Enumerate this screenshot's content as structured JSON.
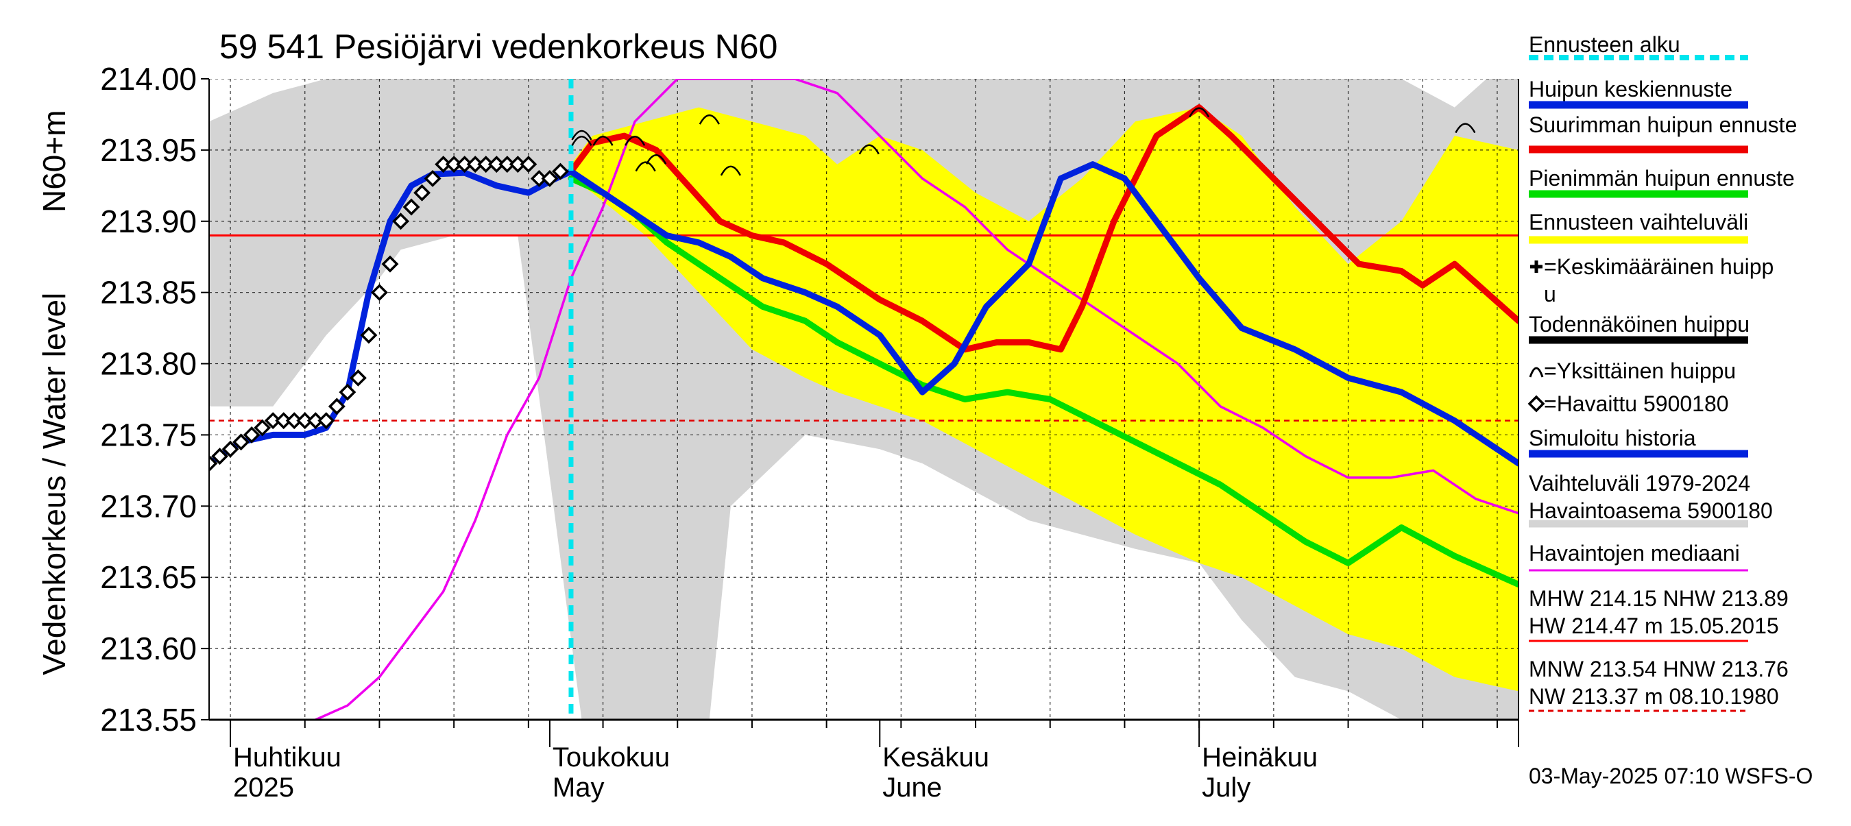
{
  "chart_data": {
    "type": "line",
    "title": "59 541 Pesiöjärvi vedenkorkeus N60",
    "ylabel_top": "N60+m",
    "ylabel": "Vedenkorkeus / Water level",
    "ylim": [
      213.55,
      214.0
    ],
    "yticks": [
      {
        "value": 214.0,
        "label": "214.00"
      },
      {
        "value": 213.95,
        "label": "213.95"
      },
      {
        "value": 213.9,
        "label": "213.90"
      },
      {
        "value": 213.85,
        "label": "213.85"
      },
      {
        "value": 213.8,
        "label": "213.80"
      },
      {
        "value": 213.75,
        "label": "213.75"
      },
      {
        "value": 213.7,
        "label": "213.70"
      },
      {
        "value": 213.65,
        "label": "213.65"
      },
      {
        "value": 213.6,
        "label": "213.60"
      },
      {
        "value": 213.55,
        "label": "213.55"
      }
    ],
    "xlim": [
      "2025-03-30",
      "2025-07-31"
    ],
    "xgrid_days": [
      "2025-04-01",
      "2025-04-08",
      "2025-04-15",
      "2025-04-22",
      "2025-04-29",
      "2025-05-06",
      "2025-05-13",
      "2025-05-20",
      "2025-05-27",
      "2025-06-03",
      "2025-06-10",
      "2025-06-17",
      "2025-06-24",
      "2025-07-01",
      "2025-07-08",
      "2025-07-15",
      "2025-07-22",
      "2025-07-29"
    ],
    "month_labels": [
      {
        "date": "2025-04-01",
        "fi": "Huhtikuu",
        "en": "2025"
      },
      {
        "date": "2025-05-01",
        "fi": "Toukokuu",
        "en": "May"
      },
      {
        "date": "2025-06-01",
        "fi": "Kesäkuu",
        "en": "June"
      },
      {
        "date": "2025-07-01",
        "fi": "Heinäkuu",
        "en": "July"
      }
    ],
    "forecast_start": "2025-05-03",
    "hlines": [
      {
        "name": "NHW 213.89",
        "value": 213.89,
        "color": "#ff0000",
        "style": "solid"
      },
      {
        "name": "HNW 213.76",
        "value": 213.76,
        "color": "#e00000",
        "style": "dashed"
      }
    ],
    "colors": {
      "forecast_start": "#00e5ee",
      "mean_forecast": "#0022dd",
      "max_forecast": "#ee0000",
      "min_forecast": "#00dd00",
      "forecast_range": "#ffff00",
      "history_range": "#d4d4d4",
      "median": "#ee00ee",
      "observed": "#000000"
    },
    "history_range": {
      "x": [
        "2025-03-30",
        "2025-04-05",
        "2025-04-10",
        "2025-04-15",
        "2025-04-17",
        "2025-04-22",
        "2025-04-28",
        "2025-05-04",
        "2025-05-10",
        "2025-05-16",
        "2025-05-18",
        "2025-05-25",
        "2025-06-01",
        "2025-06-05",
        "2025-06-10",
        "2025-06-15",
        "2025-06-20",
        "2025-06-25",
        "2025-07-01",
        "2025-07-05",
        "2025-07-10",
        "2025-07-15",
        "2025-07-20",
        "2025-07-25",
        "2025-07-28",
        "2025-07-31"
      ],
      "upper": [
        213.97,
        213.99,
        214.0,
        214.0,
        214.0,
        214.0,
        214.0,
        214.0,
        214.0,
        214.0,
        214.0,
        214.0,
        214.0,
        214.0,
        214.0,
        214.0,
        214.0,
        214.0,
        214.0,
        214.0,
        214.0,
        214.0,
        214.0,
        213.98,
        214.0,
        214.0
      ],
      "lower": [
        213.77,
        213.77,
        213.82,
        213.86,
        213.88,
        213.89,
        213.89,
        213.55,
        213.55,
        213.55,
        213.7,
        213.75,
        213.74,
        213.73,
        213.71,
        213.69,
        213.68,
        213.67,
        213.66,
        213.62,
        213.58,
        213.57,
        213.55,
        213.55,
        213.55,
        213.55
      ]
    },
    "forecast_range": {
      "x": [
        "2025-05-03",
        "2025-05-05",
        "2025-05-10",
        "2025-05-15",
        "2025-05-20",
        "2025-05-25",
        "2025-05-28",
        "2025-06-01",
        "2025-06-05",
        "2025-06-10",
        "2025-06-15",
        "2025-06-20",
        "2025-06-25",
        "2025-07-01",
        "2025-07-05",
        "2025-07-10",
        "2025-07-15",
        "2025-07-20",
        "2025-07-25",
        "2025-07-31"
      ],
      "upper": [
        213.94,
        213.96,
        213.97,
        213.98,
        213.97,
        213.96,
        213.94,
        213.96,
        213.95,
        213.92,
        213.9,
        213.93,
        213.97,
        213.98,
        213.96,
        213.91,
        213.87,
        213.9,
        213.96,
        213.95
      ],
      "lower": [
        213.93,
        213.92,
        213.89,
        213.85,
        213.81,
        213.79,
        213.78,
        213.77,
        213.76,
        213.74,
        213.72,
        213.7,
        213.68,
        213.66,
        213.65,
        213.63,
        213.61,
        213.6,
        213.58,
        213.57
      ]
    },
    "series": [
      {
        "name": "Huipun keskiennuste",
        "x": [
          "2025-03-30",
          "2025-04-02",
          "2025-04-05",
          "2025-04-08",
          "2025-04-10",
          "2025-04-12",
          "2025-04-14",
          "2025-04-16",
          "2025-04-18",
          "2025-04-20",
          "2025-04-23",
          "2025-04-26",
          "2025-04-29",
          "2025-05-01",
          "2025-05-03",
          "2025-05-06",
          "2025-05-09",
          "2025-05-12",
          "2025-05-15",
          "2025-05-18",
          "2025-05-21",
          "2025-05-25",
          "2025-05-28",
          "2025-06-01",
          "2025-06-05",
          "2025-06-08",
          "2025-06-11",
          "2025-06-15",
          "2025-06-18",
          "2025-06-21",
          "2025-06-24",
          "2025-06-27",
          "2025-07-01",
          "2025-07-05",
          "2025-07-10",
          "2025-07-15",
          "2025-07-20",
          "2025-07-25",
          "2025-07-31"
        ],
        "values": [
          213.73,
          213.745,
          213.75,
          213.75,
          213.755,
          213.78,
          213.85,
          213.9,
          213.925,
          213.933,
          213.934,
          213.925,
          213.92,
          213.928,
          213.935,
          213.92,
          213.905,
          213.89,
          213.885,
          213.875,
          213.86,
          213.85,
          213.84,
          213.82,
          213.78,
          213.8,
          213.84,
          213.87,
          213.93,
          213.94,
          213.93,
          213.9,
          213.86,
          213.825,
          213.81,
          213.79,
          213.78,
          213.76,
          213.73
        ]
      },
      {
        "name": "Suurimman huipun ennuste",
        "x": [
          "2025-05-03",
          "2025-05-05",
          "2025-05-08",
          "2025-05-11",
          "2025-05-14",
          "2025-05-17",
          "2025-05-20",
          "2025-05-23",
          "2025-05-27",
          "2025-06-01",
          "2025-06-05",
          "2025-06-09",
          "2025-06-12",
          "2025-06-15",
          "2025-06-18",
          "2025-06-20",
          "2025-06-23",
          "2025-06-27",
          "2025-07-01",
          "2025-07-04",
          "2025-07-08",
          "2025-07-12",
          "2025-07-16",
          "2025-07-20",
          "2025-07-22",
          "2025-07-25",
          "2025-07-31"
        ],
        "values": [
          213.935,
          213.955,
          213.96,
          213.95,
          213.925,
          213.9,
          213.89,
          213.885,
          213.87,
          213.845,
          213.83,
          213.81,
          213.815,
          213.815,
          213.81,
          213.84,
          213.9,
          213.96,
          213.98,
          213.96,
          213.93,
          213.9,
          213.87,
          213.865,
          213.855,
          213.87,
          213.83
        ]
      },
      {
        "name": "Pienimmän huipun ennuste",
        "x": [
          "2025-05-03",
          "2025-05-06",
          "2025-05-09",
          "2025-05-12",
          "2025-05-15",
          "2025-05-18",
          "2025-05-21",
          "2025-05-25",
          "2025-05-28",
          "2025-06-01",
          "2025-06-05",
          "2025-06-09",
          "2025-06-13",
          "2025-06-17",
          "2025-06-21",
          "2025-06-25",
          "2025-06-29",
          "2025-07-03",
          "2025-07-07",
          "2025-07-11",
          "2025-07-15",
          "2025-07-17",
          "2025-07-20",
          "2025-07-25",
          "2025-07-31"
        ],
        "values": [
          213.93,
          213.92,
          213.905,
          213.885,
          213.87,
          213.855,
          213.84,
          213.83,
          213.815,
          213.8,
          213.785,
          213.775,
          213.78,
          213.775,
          213.76,
          213.745,
          213.73,
          213.715,
          213.695,
          213.675,
          213.66,
          213.67,
          213.685,
          213.665,
          213.645
        ]
      },
      {
        "name": "Havaintojen mediaani",
        "x": [
          "2025-04-09",
          "2025-04-12",
          "2025-04-15",
          "2025-04-18",
          "2025-04-21",
          "2025-04-24",
          "2025-04-27",
          "2025-04-30",
          "2025-05-03",
          "2025-05-06",
          "2025-05-09",
          "2025-05-13",
          "2025-05-16",
          "2025-05-20",
          "2025-05-24",
          "2025-05-28",
          "2025-06-01",
          "2025-06-05",
          "2025-06-09",
          "2025-06-13",
          "2025-06-17",
          "2025-06-21",
          "2025-06-25",
          "2025-06-29",
          "2025-07-03",
          "2025-07-07",
          "2025-07-11",
          "2025-07-15",
          "2025-07-19",
          "2025-07-23",
          "2025-07-27",
          "2025-07-31"
        ],
        "values": [
          213.55,
          213.56,
          213.58,
          213.61,
          213.64,
          213.69,
          213.75,
          213.79,
          213.86,
          213.91,
          213.97,
          214.0,
          214.0,
          214.0,
          214.0,
          213.99,
          213.96,
          213.93,
          213.91,
          213.88,
          213.86,
          213.84,
          213.82,
          213.8,
          213.77,
          213.755,
          213.735,
          213.72,
          213.72,
          213.725,
          213.705,
          213.695
        ]
      },
      {
        "name": "Havaittu 5900180",
        "x": [
          "2025-03-30",
          "2025-03-31",
          "2025-04-01",
          "2025-04-02",
          "2025-04-03",
          "2025-04-04",
          "2025-04-05",
          "2025-04-06",
          "2025-04-07",
          "2025-04-08",
          "2025-04-09",
          "2025-04-10",
          "2025-04-11",
          "2025-04-12",
          "2025-04-13",
          "2025-04-14",
          "2025-04-15",
          "2025-04-16",
          "2025-04-17",
          "2025-04-18",
          "2025-04-19",
          "2025-04-20",
          "2025-04-21",
          "2025-04-22",
          "2025-04-23",
          "2025-04-24",
          "2025-04-25",
          "2025-04-26",
          "2025-04-27",
          "2025-04-28",
          "2025-04-29",
          "2025-04-30",
          "2025-05-01",
          "2025-05-02"
        ],
        "values": [
          213.73,
          213.735,
          213.74,
          213.745,
          213.75,
          213.755,
          213.76,
          213.76,
          213.76,
          213.76,
          213.76,
          213.76,
          213.77,
          213.78,
          213.79,
          213.82,
          213.85,
          213.87,
          213.9,
          213.91,
          213.92,
          213.93,
          213.94,
          213.94,
          213.94,
          213.94,
          213.94,
          213.94,
          213.94,
          213.94,
          213.94,
          213.93,
          213.93,
          213.935
        ]
      }
    ],
    "single_peaks": [
      {
        "date": "2025-05-04",
        "value": 213.962
      },
      {
        "date": "2025-05-04",
        "value": 213.958
      },
      {
        "date": "2025-05-06",
        "value": 213.958
      },
      {
        "date": "2025-05-09",
        "value": 213.958
      },
      {
        "date": "2025-05-10",
        "value": 213.94
      },
      {
        "date": "2025-05-11",
        "value": 213.945
      },
      {
        "date": "2025-05-16",
        "value": 213.973
      },
      {
        "date": "2025-05-18",
        "value": 213.937
      },
      {
        "date": "2025-05-31",
        "value": 213.952
      },
      {
        "date": "2025-07-01",
        "value": 213.978
      },
      {
        "date": "2025-07-26",
        "value": 213.967
      }
    ],
    "legend": [
      {
        "label": "Ennusteen alku",
        "style": "dashed",
        "color": "#00e5ee"
      },
      {
        "label": "Huipun keskiennuste",
        "style": "line",
        "color": "#0022dd"
      },
      {
        "label": "Suurimman huipun ennuste",
        "style": "line",
        "color": "#ee0000"
      },
      {
        "label": "Pienimmän huipun ennuste",
        "style": "line",
        "color": "#00dd00"
      },
      {
        "label": "Ennusteen vaihteluväli",
        "style": "line",
        "color": "#ffff00"
      },
      {
        "label": "=Keskimääräinen huipp",
        "label2": "u",
        "style": "plus"
      },
      {
        "label": "Todennäköinen huippu",
        "style": "line",
        "color": "#000000"
      },
      {
        "label": "=Yksittäinen huippu",
        "style": "arc"
      },
      {
        "label": "=Havaittu 5900180",
        "style": "diamond"
      },
      {
        "label": "Simuloitu historia",
        "style": "line",
        "color": "#0022dd"
      },
      {
        "label": "Vaihteluväli 1979-2024",
        "label2": " Havaintoasema 5900180",
        "style": "line",
        "color": "#d4d4d4"
      },
      {
        "label": "Havaintojen mediaani",
        "style": "thin",
        "color": "#ee00ee"
      },
      {
        "label": "MHW 214.15 NHW 213.89",
        "label2": "HW 214.47 m 15.05.2015",
        "style": "thin",
        "color": "#ff0000"
      },
      {
        "label": "MNW 213.54 HNW 213.76",
        "label2": "NW 213.37 m 08.10.1980",
        "style": "dashedthin",
        "color": "#e00000"
      }
    ],
    "footer": "03-May-2025 07:10 WSFS-O"
  }
}
